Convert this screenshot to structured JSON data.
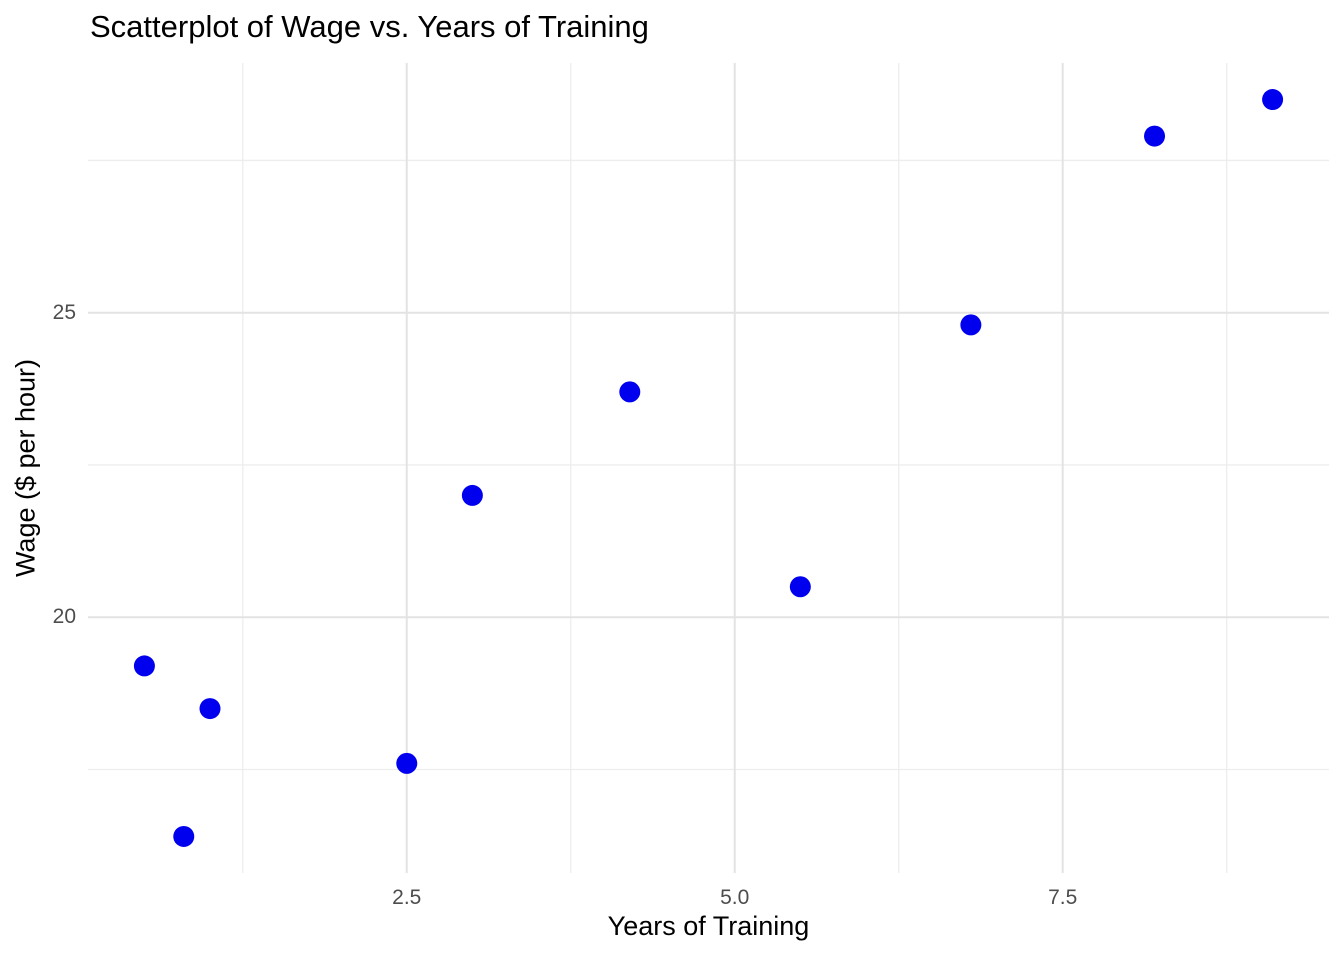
{
  "chart_data": {
    "type": "scatter",
    "title": "Scatterplot of Wage vs. Years of Training",
    "xlabel": "Years of Training",
    "ylabel": "Wage ($ per hour)",
    "points": [
      {
        "x": 0.5,
        "y": 19.2
      },
      {
        "x": 0.8,
        "y": 16.4
      },
      {
        "x": 1.0,
        "y": 18.5
      },
      {
        "x": 2.5,
        "y": 17.6
      },
      {
        "x": 3.0,
        "y": 22.0
      },
      {
        "x": 4.2,
        "y": 23.7
      },
      {
        "x": 5.5,
        "y": 20.5
      },
      {
        "x": 6.8,
        "y": 24.8
      },
      {
        "x": 8.2,
        "y": 27.9
      },
      {
        "x": 9.1,
        "y": 28.5
      }
    ],
    "xlim": [
      0.07,
      9.53
    ],
    "ylim": [
      15.8,
      29.1
    ],
    "x_ticks": {
      "values": [
        2.5,
        5.0,
        7.5
      ],
      "labels": [
        "2.5",
        "5.0",
        "7.5"
      ]
    },
    "y_ticks": {
      "values": [
        20,
        25
      ],
      "labels": [
        "20",
        "25"
      ]
    },
    "x_minor_gridlines": [
      1.25,
      3.75,
      6.25,
      8.75
    ],
    "y_minor_gridlines": [
      17.5,
      22.5,
      27.5
    ],
    "grid": "major-and-minor",
    "legend": "none",
    "styles": {
      "point_color": "#0000EE",
      "major_grid_color": "#e3e3e3",
      "minor_grid_color": "#ededed",
      "background_color": "#ffffff",
      "tick_label_color": "#4d4d4d",
      "text_color": "#000000"
    }
  }
}
